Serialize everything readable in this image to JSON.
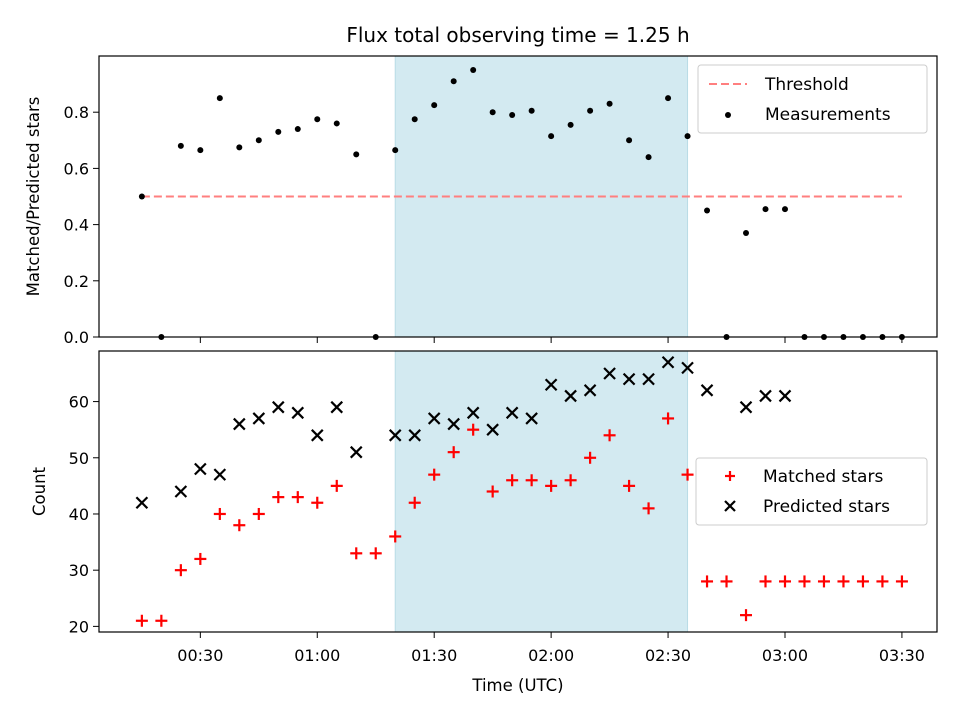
{
  "chart_data": {
    "title": "Flux total observing time = 1.25 h",
    "xlabel": "Time (UTC)",
    "x_ticks": [
      "00:30",
      "01:00",
      "01:30",
      "02:00",
      "02:30",
      "03:00",
      "03:30"
    ],
    "shaded_interval": [
      "01:20",
      "02:35"
    ],
    "shade_color": "#d3eaf1",
    "x": [
      "00:15",
      "00:20",
      "00:25",
      "00:30",
      "00:35",
      "00:40",
      "00:45",
      "00:50",
      "00:55",
      "01:00",
      "01:05",
      "01:10",
      "01:15",
      "01:20",
      "01:25",
      "01:30",
      "01:35",
      "01:40",
      "01:45",
      "01:50",
      "01:55",
      "02:00",
      "02:05",
      "02:10",
      "02:15",
      "02:20",
      "02:25",
      "02:30",
      "02:35",
      "02:40",
      "02:45",
      "02:50",
      "02:55",
      "03:00",
      "03:05",
      "03:10",
      "03:15",
      "03:20",
      "03:25",
      "03:30"
    ],
    "panels": [
      {
        "type": "scatter",
        "ylabel": "Matched/Predicted stars",
        "ylim": [
          0,
          1.0
        ],
        "y_ticks": [
          "0.0",
          "0.2",
          "0.4",
          "0.6",
          "0.8"
        ],
        "legend_position": "top-right",
        "series": [
          {
            "name": "Threshold",
            "type": "line",
            "style": "dashed",
            "color": "#ff7f7f",
            "x": [
              "00:15",
              "03:30"
            ],
            "values": [
              0.5,
              0.5
            ]
          },
          {
            "name": "Measurements",
            "type": "scatter",
            "marker": "dot",
            "color": "#000000",
            "values": [
              0.5,
              0.0,
              0.68,
              0.665,
              0.85,
              0.675,
              0.7,
              0.73,
              0.74,
              0.775,
              0.76,
              0.65,
              0.0,
              0.665,
              0.775,
              0.825,
              0.91,
              0.95,
              0.8,
              0.79,
              0.805,
              0.715,
              0.755,
              0.805,
              0.83,
              0.7,
              0.64,
              0.85,
              0.715,
              0.45,
              0.0,
              0.37,
              0.455,
              0.455,
              0.0,
              0.0,
              0.0,
              0.0,
              0.0,
              0.0
            ]
          }
        ]
      },
      {
        "type": "scatter",
        "ylabel": "Count",
        "ylim": [
          19,
          69
        ],
        "y_ticks": [
          "20",
          "30",
          "40",
          "50",
          "60"
        ],
        "legend_position": "center-right",
        "series": [
          {
            "name": "Matched stars",
            "marker": "+",
            "color": "#ff0000",
            "values": [
              21,
              21,
              30,
              32,
              40,
              38,
              40,
              43,
              43,
              42,
              45,
              33,
              33,
              36,
              42,
              47,
              51,
              55,
              44,
              46,
              46,
              45,
              46,
              50,
              54,
              45,
              41,
              57,
              47,
              28,
              28,
              22,
              28,
              28,
              28,
              28,
              28,
              28,
              28,
              28
            ]
          },
          {
            "name": "Predicted stars",
            "marker": "x",
            "color": "#000000",
            "values": [
              42,
              null,
              44,
              48,
              47,
              56,
              57,
              59,
              58,
              54,
              59,
              51,
              null,
              54,
              54,
              57,
              56,
              58,
              55,
              58,
              57,
              63,
              61,
              62,
              65,
              64,
              64,
              67,
              66,
              62,
              null,
              59,
              61,
              61,
              null,
              null,
              null,
              null,
              null,
              null
            ]
          }
        ]
      }
    ]
  }
}
